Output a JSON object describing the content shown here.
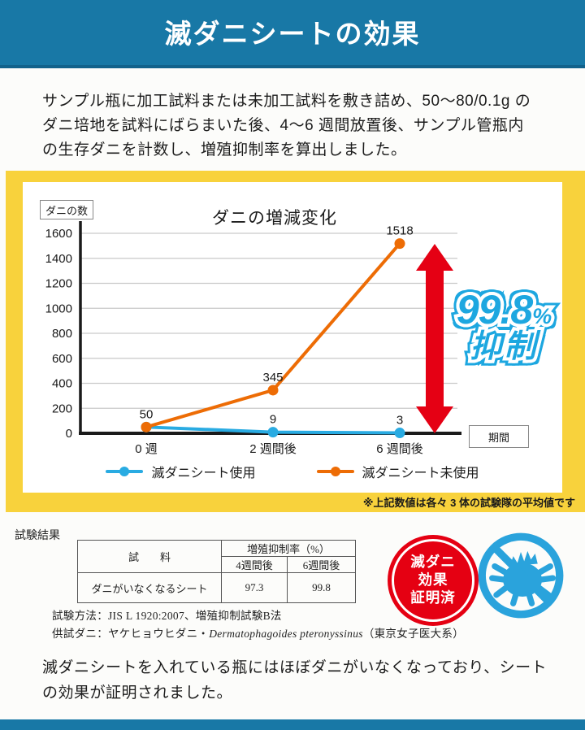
{
  "colors": {
    "accent_blue": "#1878a6",
    "frame_yellow": "#f8d23c",
    "badge_red": "#e50012",
    "mite_blue": "#2aa3dc"
  },
  "header": {
    "title": "滅ダニシートの効果"
  },
  "intro": {
    "text": "サンプル瓶に加工試料または未加工試料を敷き詰め、50〜80/0.1g の\nダニ培地を試料にばらまいた後、4〜6 週間放置後、サンプル管瓶内\nの生存ダニを計数し、増殖抑制率を算出しました。"
  },
  "chart_data": {
    "type": "line",
    "title": "ダニの増減変化",
    "y_axis_box_label": "ダニの数",
    "x_axis_box_label": "期間",
    "categories": [
      "0 週",
      "2 週間後",
      "6 週間後"
    ],
    "series": [
      {
        "name": "滅ダニシート使用",
        "color": "#29abe2",
        "values": [
          50,
          9,
          3
        ]
      },
      {
        "name": "滅ダニシート未使用",
        "color": "#ed6c05",
        "values": [
          50,
          345,
          1518
        ]
      }
    ],
    "ylim": [
      0,
      1600
    ],
    "y_tick_step": 200,
    "grid": true,
    "legend_position": "bottom",
    "note": "※上記数値は各々 3 体の試験隊の平均値です",
    "annotation": {
      "value": "99.8",
      "unit": "%",
      "label": "抑制",
      "arrow_color": "#e50014",
      "text_color": "#1da7e0"
    }
  },
  "results": {
    "section_label": "試験結果",
    "table": {
      "col_sample": "試　　料",
      "col_group": "増殖抑制率（%）",
      "col_sub_w4": "4週間後",
      "col_sub_w6": "6週間後",
      "row_sample": "ダニがいなくなるシート",
      "row_w4": "97.3",
      "row_w6": "99.8"
    },
    "method_note": "試験方法：JIS L 1920:2007、増殖抑制試験B法",
    "species_prefix": "供試ダニ：ヤケヒョウヒダニ・",
    "species_name": "Dermatophagoides pteronyssinus",
    "species_suffix": "（東京女子医大系）",
    "badge": {
      "line1": "滅ダニ",
      "line2": "効果",
      "line3": "証明済"
    }
  },
  "conclusion": {
    "text": "滅ダニシートを入れている瓶にはほぼダニがいなくなっており、シート\nの効果が証明されました。"
  }
}
